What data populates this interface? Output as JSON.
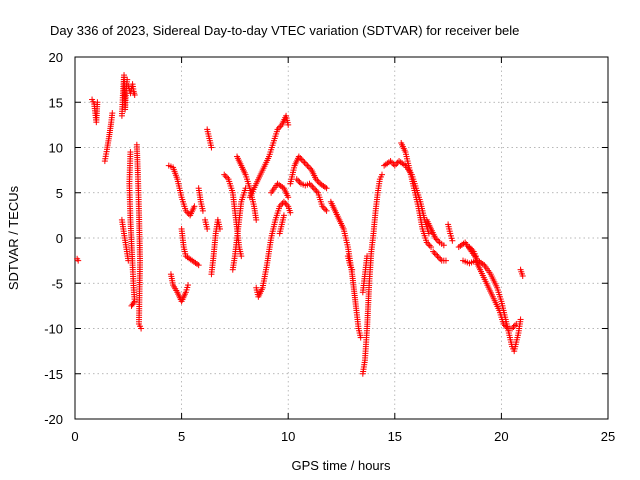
{
  "chart_data": {
    "type": "scatter",
    "title": "Day 336 of 2023, Sidereal Day-to-day VTEC variation (SDTVAR) for receiver bele",
    "xlabel": "GPS time / hours",
    "ylabel": "SDTVAR / TECUs",
    "xlim": [
      0,
      25
    ],
    "ylim": [
      -20,
      20
    ],
    "xticks": [
      0,
      5,
      10,
      15,
      20,
      25
    ],
    "yticks": [
      -20,
      -15,
      -10,
      -5,
      0,
      5,
      10,
      15,
      20
    ],
    "grid": true,
    "marker": "+",
    "color": "#ff0000",
    "segments": [
      [
        [
          0.1,
          -2.3
        ],
        [
          0.15,
          -2.5
        ]
      ],
      [
        [
          0.8,
          15.3
        ],
        [
          0.9,
          14.8
        ],
        [
          0.95,
          13.8
        ],
        [
          1.0,
          12.8
        ],
        [
          1.05,
          15.0
        ]
      ],
      [
        [
          1.4,
          8.5
        ],
        [
          1.5,
          9.8
        ],
        [
          1.6,
          11.2
        ],
        [
          1.7,
          12.8
        ],
        [
          1.75,
          13.8
        ]
      ],
      [
        [
          2.2,
          13.5
        ],
        [
          2.25,
          16.0
        ],
        [
          2.3,
          18.0
        ],
        [
          2.35,
          14.2
        ],
        [
          2.4,
          16.5
        ],
        [
          2.45,
          17.5
        ]
      ],
      [
        [
          2.5,
          16.8
        ],
        [
          2.6,
          16.0
        ],
        [
          2.7,
          17.0
        ],
        [
          2.75,
          16.2
        ],
        [
          2.8,
          15.8
        ]
      ],
      [
        [
          2.2,
          2.0
        ],
        [
          2.3,
          0.5
        ],
        [
          2.4,
          -1.0
        ],
        [
          2.5,
          -2.5
        ]
      ],
      [
        [
          2.6,
          9.5
        ],
        [
          2.55,
          6.0
        ],
        [
          2.6,
          2.0
        ],
        [
          2.7,
          -3.0
        ],
        [
          2.75,
          -5.5
        ],
        [
          2.8,
          -7.0
        ],
        [
          2.65,
          -7.5
        ]
      ],
      [
        [
          2.9,
          10.3
        ],
        [
          2.95,
          7.0
        ],
        [
          3.0,
          3.0
        ],
        [
          3.05,
          -2.5
        ],
        [
          3.0,
          -9.5
        ],
        [
          3.1,
          -10.0
        ]
      ],
      [
        [
          4.4,
          8.0
        ],
        [
          4.6,
          7.8
        ],
        [
          4.8,
          6.5
        ],
        [
          5.0,
          4.5
        ],
        [
          5.2,
          3.0
        ],
        [
          5.4,
          2.5
        ],
        [
          5.6,
          3.5
        ]
      ],
      [
        [
          4.5,
          -4.0
        ],
        [
          4.6,
          -5.2
        ],
        [
          4.8,
          -6.0
        ],
        [
          5.0,
          -7.0
        ],
        [
          5.2,
          -6.0
        ],
        [
          5.3,
          -5.2
        ]
      ],
      [
        [
          5.0,
          1.0
        ],
        [
          5.1,
          -1.0
        ],
        [
          5.2,
          -2.0
        ],
        [
          5.5,
          -2.5
        ],
        [
          5.8,
          -3.0
        ]
      ],
      [
        [
          5.8,
          5.5
        ],
        [
          5.9,
          4.0
        ],
        [
          6.0,
          3.0
        ]
      ],
      [
        [
          6.1,
          2.0
        ],
        [
          6.2,
          1.0
        ]
      ],
      [
        [
          6.4,
          -4.0
        ],
        [
          6.5,
          -2.0
        ],
        [
          6.6,
          0.5
        ],
        [
          6.7,
          2.0
        ],
        [
          6.8,
          1.0
        ]
      ],
      [
        [
          6.2,
          12.0
        ],
        [
          6.3,
          11.0
        ],
        [
          6.4,
          10.0
        ]
      ],
      [
        [
          7.0,
          7.0
        ],
        [
          7.2,
          6.5
        ],
        [
          7.4,
          5.0
        ],
        [
          7.5,
          3.0
        ],
        [
          7.6,
          1.0
        ],
        [
          7.7,
          -1.0
        ],
        [
          7.8,
          -2.0
        ]
      ],
      [
        [
          7.4,
          -3.5
        ],
        [
          7.5,
          -2.0
        ],
        [
          7.6,
          0.0
        ],
        [
          7.7,
          2.0
        ],
        [
          7.8,
          4.0
        ],
        [
          8.0,
          5.5
        ]
      ],
      [
        [
          7.6,
          9.0
        ],
        [
          7.8,
          8.0
        ],
        [
          8.0,
          7.0
        ],
        [
          8.2,
          5.5
        ],
        [
          8.4,
          3.5
        ],
        [
          8.5,
          2.0
        ]
      ],
      [
        [
          8.2,
          4.5
        ],
        [
          8.5,
          6.0
        ],
        [
          8.8,
          7.5
        ],
        [
          9.1,
          9.0
        ],
        [
          9.3,
          10.5
        ],
        [
          9.5,
          12.0
        ],
        [
          9.7,
          12.5
        ],
        [
          9.9,
          13.5
        ],
        [
          10.0,
          12.5
        ]
      ],
      [
        [
          8.5,
          -5.5
        ],
        [
          8.6,
          -6.5
        ],
        [
          8.8,
          -5.5
        ],
        [
          9.0,
          -3.0
        ],
        [
          9.2,
          0.0
        ],
        [
          9.4,
          2.0
        ],
        [
          9.6,
          3.5
        ],
        [
          9.8,
          4.0
        ],
        [
          10.0,
          3.5
        ],
        [
          10.1,
          2.8
        ]
      ],
      [
        [
          9.2,
          5.0
        ],
        [
          9.5,
          6.0
        ],
        [
          9.8,
          5.5
        ],
        [
          10.0,
          4.5
        ]
      ],
      [
        [
          9.6,
          0.5
        ],
        [
          9.7,
          1.5
        ],
        [
          9.8,
          2.5
        ]
      ],
      [
        [
          10.1,
          6.0
        ],
        [
          10.3,
          8.0
        ],
        [
          10.5,
          9.0
        ],
        [
          10.7,
          8.5
        ],
        [
          10.9,
          8.0
        ],
        [
          11.1,
          7.5
        ],
        [
          11.3,
          6.5
        ],
        [
          11.5,
          6.0
        ],
        [
          11.8,
          5.5
        ]
      ],
      [
        [
          10.4,
          6.5
        ],
        [
          10.6,
          6.0
        ],
        [
          10.8,
          5.8
        ],
        [
          11.0,
          6.0
        ],
        [
          11.2,
          5.5
        ],
        [
          11.4,
          5.0
        ],
        [
          11.6,
          3.5
        ],
        [
          11.8,
          3.0
        ]
      ],
      [
        [
          12.0,
          4.0
        ],
        [
          12.2,
          3.0
        ],
        [
          12.4,
          2.0
        ],
        [
          12.6,
          1.0
        ],
        [
          12.8,
          -1.0
        ],
        [
          13.0,
          -4.0
        ],
        [
          13.2,
          -8.0
        ],
        [
          13.3,
          -10.0
        ],
        [
          13.4,
          -11.0
        ]
      ],
      [
        [
          12.8,
          -2.0
        ],
        [
          12.9,
          -3.0
        ],
        [
          13.0,
          -3.5
        ]
      ],
      [
        [
          13.5,
          -15.0
        ],
        [
          13.6,
          -13.5
        ],
        [
          13.7,
          -10.0
        ],
        [
          13.8,
          -5.0
        ],
        [
          13.9,
          -1.5
        ],
        [
          14.0,
          0.5
        ],
        [
          14.1,
          3.0
        ],
        [
          14.2,
          5.0
        ],
        [
          14.3,
          6.5
        ],
        [
          14.4,
          7.0
        ]
      ],
      [
        [
          13.5,
          -6.0
        ],
        [
          13.6,
          -4.0
        ],
        [
          13.7,
          -2.0
        ]
      ],
      [
        [
          14.5,
          8.0
        ],
        [
          14.8,
          8.5
        ],
        [
          15.0,
          8.0
        ],
        [
          15.2,
          8.5
        ],
        [
          15.5,
          8.0
        ],
        [
          15.8,
          7.0
        ],
        [
          16.0,
          5.5
        ],
        [
          16.2,
          4.0
        ],
        [
          16.4,
          2.0
        ],
        [
          16.6,
          0.5
        ]
      ],
      [
        [
          15.3,
          10.5
        ],
        [
          15.5,
          9.5
        ],
        [
          15.7,
          7.5
        ],
        [
          15.9,
          5.5
        ],
        [
          16.1,
          3.5
        ],
        [
          16.3,
          1.0
        ],
        [
          16.5,
          -0.5
        ],
        [
          16.7,
          -1.0
        ]
      ],
      [
        [
          16.5,
          2.0
        ],
        [
          16.7,
          1.0
        ],
        [
          16.9,
          0.0
        ],
        [
          17.1,
          -0.5
        ],
        [
          17.3,
          -0.8
        ]
      ],
      [
        [
          16.8,
          -1.5
        ],
        [
          17.0,
          -2.0
        ],
        [
          17.2,
          -2.5
        ],
        [
          17.4,
          -2.5
        ]
      ],
      [
        [
          17.5,
          1.5
        ],
        [
          17.6,
          0.5
        ],
        [
          17.7,
          -0.3
        ]
      ],
      [
        [
          18.0,
          -1.0
        ],
        [
          18.3,
          -0.5
        ],
        [
          18.6,
          -1.5
        ],
        [
          18.9,
          -2.5
        ],
        [
          19.2,
          -3.0
        ],
        [
          19.5,
          -4.0
        ],
        [
          19.8,
          -5.5
        ],
        [
          20.0,
          -7.0
        ],
        [
          20.2,
          -9.0
        ],
        [
          20.4,
          -11.0
        ],
        [
          20.5,
          -12.0
        ],
        [
          20.6,
          -12.5
        ],
        [
          20.7,
          -11.5
        ],
        [
          20.8,
          -10.5
        ],
        [
          20.9,
          -9.0
        ]
      ],
      [
        [
          18.2,
          -2.5
        ],
        [
          18.5,
          -2.8
        ],
        [
          18.8,
          -2.5
        ],
        [
          19.0,
          -3.5
        ],
        [
          19.3,
          -5.0
        ],
        [
          19.6,
          -6.5
        ],
        [
          19.9,
          -8.0
        ],
        [
          20.1,
          -9.5
        ],
        [
          20.3,
          -10.0
        ],
        [
          20.5,
          -10.0
        ],
        [
          20.7,
          -9.5
        ]
      ],
      [
        [
          18.5,
          -1.0
        ],
        [
          18.7,
          -1.5
        ],
        [
          18.8,
          -2.0
        ]
      ],
      [
        [
          20.9,
          -3.5
        ],
        [
          21.0,
          -4.2
        ]
      ]
    ]
  }
}
